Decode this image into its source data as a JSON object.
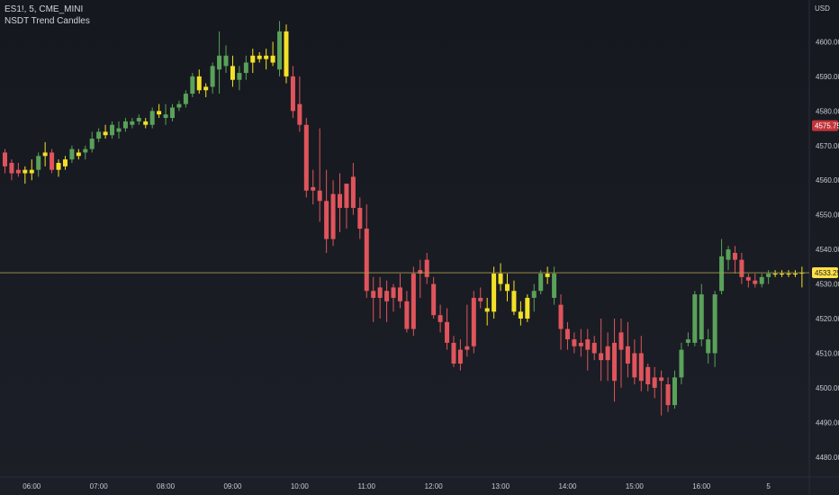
{
  "header": {
    "symbol_line": "ES1!, 5, CME_MINI",
    "indicator": "NSDT Trend Candles"
  },
  "currency": "USD",
  "colors": {
    "background": "#181a20",
    "bull": "#5aa15a",
    "bear": "#e0545b",
    "neutral": "#f3e128",
    "axis_text": "#c8cad2",
    "price_line": "#a79a4a",
    "last_label": "#ffe04a",
    "prev_label": "#c1343a"
  },
  "chart_data": {
    "type": "candlestick",
    "title": "",
    "xlabel": "",
    "ylabel": "",
    "ylim": [
      4475,
      4610
    ],
    "y_ticks": [
      4480,
      4490,
      4500,
      4510,
      4520,
      4530,
      4540,
      4550,
      4560,
      4570,
      4580,
      4590,
      4600
    ],
    "x_ticks": [
      "06:00",
      "07:00",
      "08:00",
      "09:00",
      "10:00",
      "11:00",
      "12:00",
      "13:00",
      "14:00",
      "15:00",
      "16:00",
      "5"
    ],
    "x_tick_index": [
      4,
      14,
      24,
      34,
      44,
      54,
      64,
      74,
      84,
      94,
      104,
      114
    ],
    "grid": false,
    "last_price": 4533.25,
    "last_price_label": "4533.25",
    "marker_price": 4575.75,
    "marker_label": "4575.75",
    "candles": [
      {
        "o": 4568,
        "h": 4569,
        "l": 4562,
        "c": 4564,
        "color": "bear"
      },
      {
        "o": 4565,
        "h": 4566,
        "l": 4560,
        "c": 4562,
        "color": "bear"
      },
      {
        "o": 4562,
        "h": 4565,
        "l": 4561,
        "c": 4563,
        "color": "bear"
      },
      {
        "o": 4563,
        "h": 4564,
        "l": 4559,
        "c": 4562,
        "color": "neutral"
      },
      {
        "o": 4562,
        "h": 4566,
        "l": 4560,
        "c": 4563,
        "color": "neutral"
      },
      {
        "o": 4563,
        "h": 4568,
        "l": 4561,
        "c": 4567,
        "color": "bull"
      },
      {
        "o": 4567,
        "h": 4571,
        "l": 4564,
        "c": 4568,
        "color": "neutral"
      },
      {
        "o": 4568,
        "h": 4569,
        "l": 4562,
        "c": 4563,
        "color": "bear"
      },
      {
        "o": 4563,
        "h": 4566,
        "l": 4561,
        "c": 4565,
        "color": "neutral"
      },
      {
        "o": 4564,
        "h": 4567,
        "l": 4563,
        "c": 4566,
        "color": "neutral"
      },
      {
        "o": 4566,
        "h": 4570,
        "l": 4565,
        "c": 4569,
        "color": "bull"
      },
      {
        "o": 4567,
        "h": 4569,
        "l": 4566,
        "c": 4568,
        "color": "neutral"
      },
      {
        "o": 4568,
        "h": 4570,
        "l": 4566,
        "c": 4569,
        "color": "bull"
      },
      {
        "o": 4569,
        "h": 4574,
        "l": 4568,
        "c": 4572,
        "color": "bull"
      },
      {
        "o": 4572,
        "h": 4575,
        "l": 4571,
        "c": 4574,
        "color": "bull"
      },
      {
        "o": 4574,
        "h": 4576,
        "l": 4572,
        "c": 4573,
        "color": "neutral"
      },
      {
        "o": 4573,
        "h": 4577,
        "l": 4572,
        "c": 4576,
        "color": "bull"
      },
      {
        "o": 4574,
        "h": 4577,
        "l": 4572,
        "c": 4575,
        "color": "bull"
      },
      {
        "o": 4575,
        "h": 4578,
        "l": 4574,
        "c": 4577,
        "color": "bull"
      },
      {
        "o": 4576,
        "h": 4578,
        "l": 4575,
        "c": 4577,
        "color": "bull"
      },
      {
        "o": 4577,
        "h": 4579,
        "l": 4576,
        "c": 4578,
        "color": "bull"
      },
      {
        "o": 4577,
        "h": 4578,
        "l": 4575,
        "c": 4576,
        "color": "neutral"
      },
      {
        "o": 4576,
        "h": 4581,
        "l": 4575,
        "c": 4580,
        "color": "bull"
      },
      {
        "o": 4580,
        "h": 4582,
        "l": 4578,
        "c": 4579,
        "color": "neutral"
      },
      {
        "o": 4579,
        "h": 4582,
        "l": 4576,
        "c": 4578,
        "color": "bull"
      },
      {
        "o": 4578,
        "h": 4582,
        "l": 4577,
        "c": 4581,
        "color": "bull"
      },
      {
        "o": 4581,
        "h": 4583,
        "l": 4580,
        "c": 4582,
        "color": "bull"
      },
      {
        "o": 4582,
        "h": 4586,
        "l": 4581,
        "c": 4585,
        "color": "bull"
      },
      {
        "o": 4585,
        "h": 4591,
        "l": 4584,
        "c": 4590,
        "color": "bull"
      },
      {
        "o": 4590,
        "h": 4592,
        "l": 4585,
        "c": 4586,
        "color": "neutral"
      },
      {
        "o": 4586,
        "h": 4588,
        "l": 4584,
        "c": 4587,
        "color": "neutral"
      },
      {
        "o": 4587,
        "h": 4594,
        "l": 4585,
        "c": 4593,
        "color": "bull"
      },
      {
        "o": 4592,
        "h": 4603,
        "l": 4585,
        "c": 4596,
        "color": "bull"
      },
      {
        "o": 4596,
        "h": 4599,
        "l": 4591,
        "c": 4593,
        "color": "bull"
      },
      {
        "o": 4593,
        "h": 4596,
        "l": 4587,
        "c": 4589,
        "color": "neutral"
      },
      {
        "o": 4589,
        "h": 4593,
        "l": 4586,
        "c": 4591,
        "color": "bull"
      },
      {
        "o": 4591,
        "h": 4596,
        "l": 4589,
        "c": 4594,
        "color": "bull"
      },
      {
        "o": 4594,
        "h": 4598,
        "l": 4591,
        "c": 4596,
        "color": "neutral"
      },
      {
        "o": 4596,
        "h": 4597,
        "l": 4594,
        "c": 4595,
        "color": "neutral"
      },
      {
        "o": 4595,
        "h": 4598,
        "l": 4592,
        "c": 4596,
        "color": "neutral"
      },
      {
        "o": 4596,
        "h": 4600,
        "l": 4593,
        "c": 4594,
        "color": "neutral"
      },
      {
        "o": 4592,
        "h": 4606,
        "l": 4590,
        "c": 4603,
        "color": "bull"
      },
      {
        "o": 4603,
        "h": 4605,
        "l": 4588,
        "c": 4590,
        "color": "neutral"
      },
      {
        "o": 4590,
        "h": 4593,
        "l": 4578,
        "c": 4580,
        "color": "bear"
      },
      {
        "o": 4582,
        "h": 4590,
        "l": 4574,
        "c": 4576,
        "color": "bear"
      },
      {
        "o": 4576,
        "h": 4578,
        "l": 4555,
        "c": 4557,
        "color": "bear"
      },
      {
        "o": 4558,
        "h": 4563,
        "l": 4553,
        "c": 4557,
        "color": "bear"
      },
      {
        "o": 4557,
        "h": 4575,
        "l": 4548,
        "c": 4554,
        "color": "bear"
      },
      {
        "o": 4554,
        "h": 4563,
        "l": 4539,
        "c": 4543,
        "color": "bear"
      },
      {
        "o": 4543,
        "h": 4560,
        "l": 4541,
        "c": 4556,
        "color": "bear"
      },
      {
        "o": 4556,
        "h": 4562,
        "l": 4545,
        "c": 4552,
        "color": "bear"
      },
      {
        "o": 4552,
        "h": 4558,
        "l": 4546,
        "c": 4559,
        "color": "bear"
      },
      {
        "o": 4561,
        "h": 4565,
        "l": 4550,
        "c": 4552,
        "color": "bear"
      },
      {
        "o": 4552,
        "h": 4555,
        "l": 4543,
        "c": 4546,
        "color": "bear"
      },
      {
        "o": 4546,
        "h": 4553,
        "l": 4526,
        "c": 4528,
        "color": "bear"
      },
      {
        "o": 4528,
        "h": 4532,
        "l": 4519,
        "c": 4526,
        "color": "bear"
      },
      {
        "o": 4526,
        "h": 4532,
        "l": 4520,
        "c": 4529,
        "color": "bear"
      },
      {
        "o": 4528,
        "h": 4531,
        "l": 4519,
        "c": 4525,
        "color": "bear"
      },
      {
        "o": 4526,
        "h": 4530,
        "l": 4522,
        "c": 4529,
        "color": "bear"
      },
      {
        "o": 4529,
        "h": 4533,
        "l": 4523,
        "c": 4525,
        "color": "bear"
      },
      {
        "o": 4525,
        "h": 4528,
        "l": 4516,
        "c": 4517,
        "color": "bear"
      },
      {
        "o": 4517,
        "h": 4535,
        "l": 4515,
        "c": 4533,
        "color": "bear"
      },
      {
        "o": 4533,
        "h": 4537,
        "l": 4526,
        "c": 4534,
        "color": "bear"
      },
      {
        "o": 4537,
        "h": 4539,
        "l": 4530,
        "c": 4532,
        "color": "bear"
      },
      {
        "o": 4530,
        "h": 4532,
        "l": 4520,
        "c": 4521,
        "color": "bear"
      },
      {
        "o": 4521,
        "h": 4524,
        "l": 4516,
        "c": 4519,
        "color": "bear"
      },
      {
        "o": 4519,
        "h": 4523,
        "l": 4511,
        "c": 4513,
        "color": "bear"
      },
      {
        "o": 4513,
        "h": 4515,
        "l": 4506,
        "c": 4507,
        "color": "bear"
      },
      {
        "o": 4507,
        "h": 4514,
        "l": 4505,
        "c": 4511,
        "color": "bear"
      },
      {
        "o": 4511,
        "h": 4524,
        "l": 4509,
        "c": 4512,
        "color": "bear"
      },
      {
        "o": 4512,
        "h": 4528,
        "l": 4510,
        "c": 4526,
        "color": "bear"
      },
      {
        "o": 4526,
        "h": 4529,
        "l": 4523,
        "c": 4525,
        "color": "bear"
      },
      {
        "o": 4522,
        "h": 4526,
        "l": 4518,
        "c": 4523,
        "color": "neutral"
      },
      {
        "o": 4522,
        "h": 4535,
        "l": 4520,
        "c": 4533,
        "color": "neutral"
      },
      {
        "o": 4533,
        "h": 4536,
        "l": 4528,
        "c": 4530,
        "color": "neutral"
      },
      {
        "o": 4530,
        "h": 4533,
        "l": 4525,
        "c": 4528,
        "color": "neutral"
      },
      {
        "o": 4528,
        "h": 4531,
        "l": 4521,
        "c": 4522,
        "color": "neutral"
      },
      {
        "o": 4522,
        "h": 4525,
        "l": 4518,
        "c": 4520,
        "color": "neutral"
      },
      {
        "o": 4520,
        "h": 4527,
        "l": 4519,
        "c": 4526,
        "color": "neutral"
      },
      {
        "o": 4526,
        "h": 4530,
        "l": 4522,
        "c": 4528,
        "color": "bull"
      },
      {
        "o": 4528,
        "h": 4534,
        "l": 4527,
        "c": 4533,
        "color": "bull"
      },
      {
        "o": 4533,
        "h": 4535,
        "l": 4530,
        "c": 4532,
        "color": "neutral"
      },
      {
        "o": 4526,
        "h": 4535,
        "l": 4524,
        "c": 4533,
        "color": "bull"
      },
      {
        "o": 4524,
        "h": 4527,
        "l": 4511,
        "c": 4517,
        "color": "bear"
      },
      {
        "o": 4517,
        "h": 4519,
        "l": 4511,
        "c": 4514,
        "color": "bear"
      },
      {
        "o": 4514,
        "h": 4516,
        "l": 4510,
        "c": 4512,
        "color": "bear"
      },
      {
        "o": 4512,
        "h": 4517,
        "l": 4509,
        "c": 4513,
        "color": "bear"
      },
      {
        "o": 4511,
        "h": 4517,
        "l": 4505,
        "c": 4514,
        "color": "bear"
      },
      {
        "o": 4513,
        "h": 4515,
        "l": 4508,
        "c": 4510,
        "color": "bear"
      },
      {
        "o": 4510,
        "h": 4520,
        "l": 4502,
        "c": 4508,
        "color": "bear"
      },
      {
        "o": 4508,
        "h": 4516,
        "l": 4502,
        "c": 4512,
        "color": "bear"
      },
      {
        "o": 4513,
        "h": 4520,
        "l": 4496,
        "c": 4502,
        "color": "bear"
      },
      {
        "o": 4511,
        "h": 4520,
        "l": 4500,
        "c": 4516,
        "color": "bear"
      },
      {
        "o": 4512,
        "h": 4519,
        "l": 4503,
        "c": 4507,
        "color": "bear"
      },
      {
        "o": 4503,
        "h": 4514,
        "l": 4501,
        "c": 4510,
        "color": "bear"
      },
      {
        "o": 4510,
        "h": 4515,
        "l": 4499,
        "c": 4502,
        "color": "bear"
      },
      {
        "o": 4506,
        "h": 4507,
        "l": 4499,
        "c": 4501,
        "color": "bear"
      },
      {
        "o": 4503,
        "h": 4506,
        "l": 4497,
        "c": 4500,
        "color": "bear"
      },
      {
        "o": 4503,
        "h": 4505,
        "l": 4492,
        "c": 4502,
        "color": "bear"
      },
      {
        "o": 4501,
        "h": 4503,
        "l": 4493,
        "c": 4495,
        "color": "bear"
      },
      {
        "o": 4495,
        "h": 4505,
        "l": 4494,
        "c": 4503,
        "color": "bull"
      },
      {
        "o": 4503,
        "h": 4513,
        "l": 4501,
        "c": 4511,
        "color": "bull"
      },
      {
        "o": 4514,
        "h": 4516,
        "l": 4512,
        "c": 4513,
        "color": "bull"
      },
      {
        "o": 4513,
        "h": 4528,
        "l": 4512,
        "c": 4527,
        "color": "bull"
      },
      {
        "o": 4527,
        "h": 4530,
        "l": 4512,
        "c": 4514,
        "color": "bull"
      },
      {
        "o": 4514,
        "h": 4517,
        "l": 4507,
        "c": 4510,
        "color": "bull"
      },
      {
        "o": 4510,
        "h": 4528,
        "l": 4506,
        "c": 4527,
        "color": "bull"
      },
      {
        "o": 4528,
        "h": 4543,
        "l": 4527,
        "c": 4538,
        "color": "bull"
      },
      {
        "o": 4537,
        "h": 4541,
        "l": 4534,
        "c": 4540,
        "color": "bull"
      },
      {
        "o": 4539,
        "h": 4541,
        "l": 4533,
        "c": 4537,
        "color": "bear"
      },
      {
        "o": 4537,
        "h": 4539,
        "l": 4530,
        "c": 4532,
        "color": "bear"
      },
      {
        "o": 4532,
        "h": 4533,
        "l": 4529,
        "c": 4531,
        "color": "bear"
      },
      {
        "o": 4531,
        "h": 4533,
        "l": 4529,
        "c": 4530,
        "color": "bear"
      },
      {
        "o": 4530,
        "h": 4533,
        "l": 4529,
        "c": 4532,
        "color": "bull"
      },
      {
        "o": 4532,
        "h": 4534,
        "l": 4530,
        "c": 4533,
        "color": "bull"
      },
      {
        "o": 4533,
        "h": 4534,
        "l": 4532,
        "c": 4533,
        "color": "neutral"
      },
      {
        "o": 4533,
        "h": 4534,
        "l": 4532,
        "c": 4533,
        "color": "neutral"
      },
      {
        "o": 4533,
        "h": 4534,
        "l": 4532,
        "c": 4533,
        "color": "neutral"
      },
      {
        "o": 4533,
        "h": 4534,
        "l": 4532,
        "c": 4533,
        "color": "neutral"
      },
      {
        "o": 4533.25,
        "h": 4535,
        "l": 4529,
        "c": 4533.25,
        "color": "neutral"
      }
    ]
  }
}
